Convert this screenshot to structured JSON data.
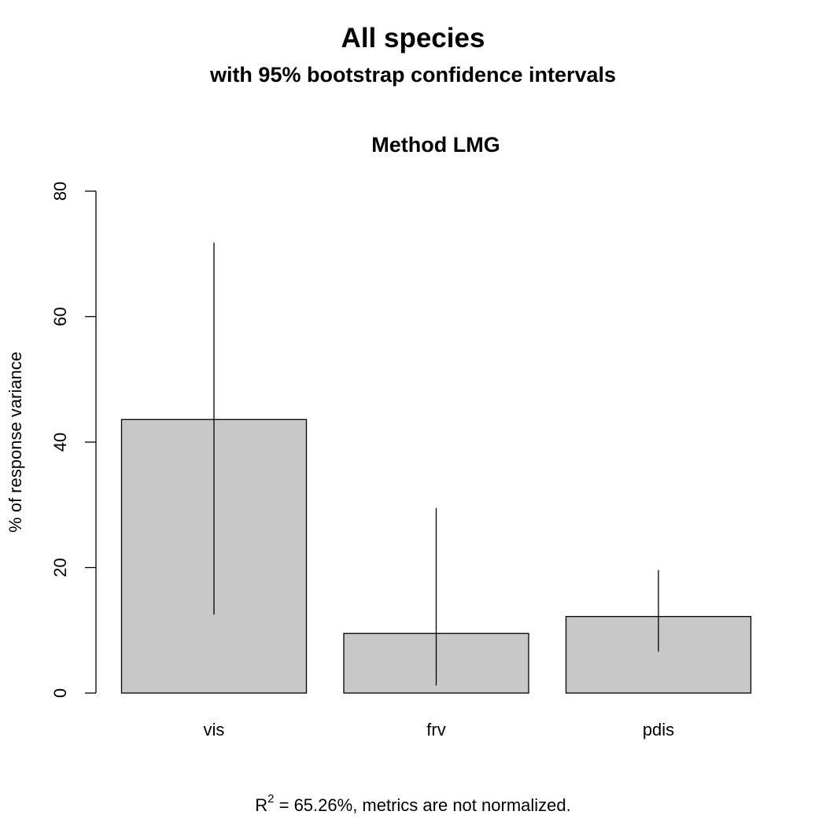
{
  "chart_data": {
    "type": "bar",
    "title": "All species",
    "subtitle": "with 95% bootstrap confidence intervals",
    "panel_title": "Method LMG",
    "ylabel": "% of response variance",
    "xlabel": "",
    "categories": [
      "vis",
      "frv",
      "pdis"
    ],
    "values": [
      43.6,
      9.5,
      12.2
    ],
    "ci_lower": [
      12.5,
      1.2,
      6.6
    ],
    "ci_upper": [
      71.8,
      29.5,
      19.6
    ],
    "ylim": [
      0,
      80
    ],
    "yticks": [
      0,
      20,
      40,
      60,
      80
    ],
    "bar_color": "#c8c8c8",
    "grid": false,
    "caption": {
      "r_symbol": "R",
      "superscript": "2",
      "text": " = 65.26%, metrics are not normalized."
    }
  }
}
